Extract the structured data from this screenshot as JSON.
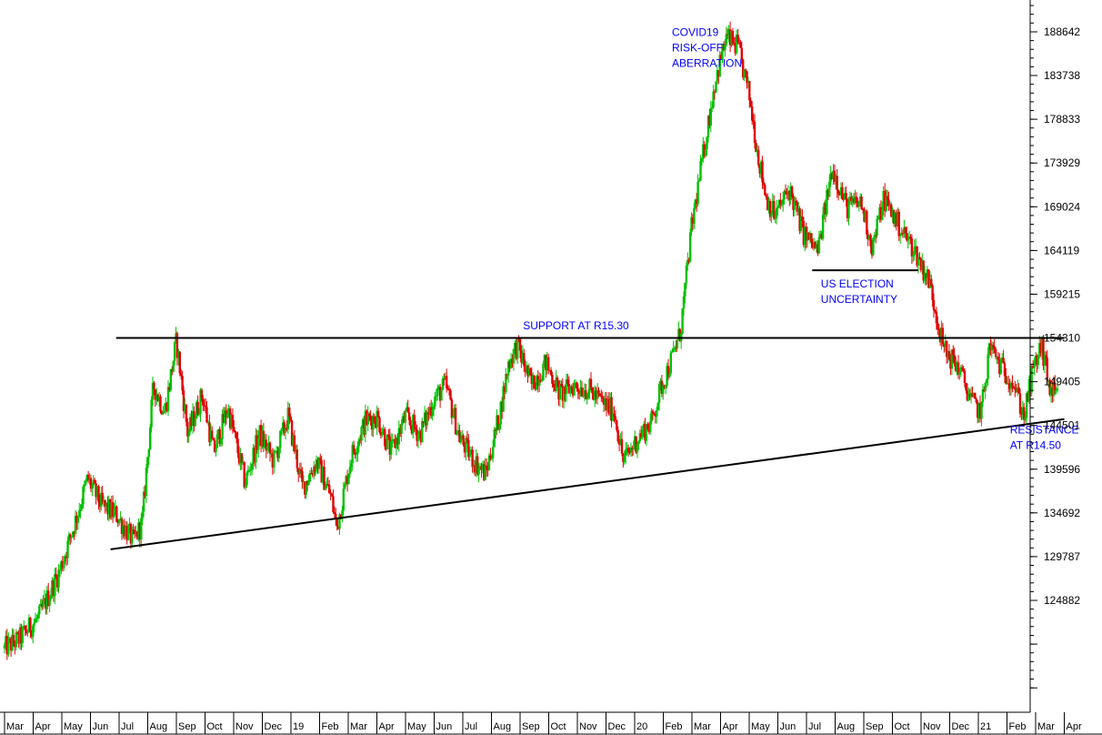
{
  "chart_data": {
    "type": "candlestick",
    "title": "",
    "xlabel": "",
    "ylabel": "",
    "ylim": [
      112000,
      192000
    ],
    "y_ticks": [
      124882,
      129787,
      134692,
      139596,
      144501,
      149405,
      154310,
      159215,
      164119,
      169024,
      173929,
      178833,
      183738,
      188642
    ],
    "y_tick_labels": [
      "124882",
      "129787",
      "134692",
      "139596",
      "144501",
      "149405",
      "154310",
      "159215",
      "164119",
      "169024",
      "173929",
      "178833",
      "183738",
      "188642"
    ],
    "x_labels": [
      "Mar",
      "Apr",
      "May",
      "Jun",
      "Jul",
      "Aug",
      "Sep",
      "Oct",
      "Nov",
      "Dec",
      "19",
      "Feb",
      "Mar",
      "Apr",
      "May",
      "Jun",
      "Jul",
      "Aug",
      "Sep",
      "Oct",
      "Nov",
      "Dec",
      "20",
      "Feb",
      "Mar",
      "Apr",
      "May",
      "Jun",
      "Jul",
      "Aug",
      "Sep",
      "Oct",
      "Nov",
      "Dec",
      "21",
      "Feb",
      "Mar",
      "Apr"
    ],
    "up_color": "#00c000",
    "down_color": "#e00000",
    "line_color": "#000000",
    "annotation_color": "#0000ff",
    "series": [
      {
        "name": "",
        "price_path": [
          [
            0,
            119500
          ],
          [
            0.5,
            120500
          ],
          [
            1.2,
            123000
          ],
          [
            1.9,
            128000
          ],
          [
            2.4,
            133000
          ],
          [
            2.9,
            138500
          ],
          [
            3.4,
            135500
          ],
          [
            3.9,
            134500
          ],
          [
            4.5,
            131500
          ],
          [
            4.8,
            133500
          ],
          [
            5.2,
            149000
          ],
          [
            5.6,
            146000
          ],
          [
            6.0,
            154000
          ],
          [
            6.4,
            143500
          ],
          [
            6.9,
            148000
          ],
          [
            7.3,
            141500
          ],
          [
            7.8,
            146500
          ],
          [
            8.4,
            138000
          ],
          [
            8.9,
            143500
          ],
          [
            9.4,
            140500
          ],
          [
            9.9,
            145500
          ],
          [
            10.4,
            137500
          ],
          [
            10.9,
            140500
          ],
          [
            11.4,
            136500
          ],
          [
            11.6,
            133000
          ],
          [
            12.1,
            141000
          ],
          [
            12.6,
            145000
          ],
          [
            13.0,
            145500
          ],
          [
            13.5,
            141500
          ],
          [
            14.0,
            145500
          ],
          [
            14.5,
            143500
          ],
          [
            15.0,
            147500
          ],
          [
            15.4,
            149000
          ],
          [
            15.9,
            143000
          ],
          [
            16.4,
            140500
          ],
          [
            16.8,
            139000
          ],
          [
            17.3,
            146000
          ],
          [
            17.6,
            151500
          ],
          [
            17.9,
            153500
          ],
          [
            18.4,
            149000
          ],
          [
            18.9,
            151500
          ],
          [
            19.4,
            148000
          ],
          [
            19.9,
            149000
          ],
          [
            20.4,
            148500
          ],
          [
            20.9,
            147000
          ],
          [
            21.3,
            146000
          ],
          [
            21.6,
            140500
          ],
          [
            22.1,
            143000
          ],
          [
            22.6,
            145000
          ],
          [
            22.9,
            148500
          ],
          [
            23.3,
            152000
          ],
          [
            23.6,
            155000
          ],
          [
            24.0,
            167000
          ],
          [
            24.4,
            175000
          ],
          [
            24.8,
            183000
          ],
          [
            25.2,
            188000
          ],
          [
            25.6,
            187000
          ],
          [
            26.0,
            181500
          ],
          [
            26.3,
            175000
          ],
          [
            26.6,
            170000
          ],
          [
            26.9,
            168000
          ],
          [
            27.4,
            171000
          ],
          [
            27.9,
            166000
          ],
          [
            28.4,
            164000
          ],
          [
            28.9,
            173500
          ],
          [
            29.4,
            169000
          ],
          [
            29.9,
            169500
          ],
          [
            30.3,
            164500
          ],
          [
            30.7,
            170000
          ],
          [
            31.3,
            166500
          ],
          [
            31.8,
            164000
          ],
          [
            32.3,
            160500
          ],
          [
            32.8,
            153000
          ],
          [
            33.3,
            151000
          ],
          [
            33.8,
            147000
          ],
          [
            34.1,
            146000
          ],
          [
            34.4,
            153500
          ],
          [
            34.8,
            151000
          ],
          [
            35.2,
            149500
          ],
          [
            35.6,
            145500
          ],
          [
            35.9,
            150500
          ],
          [
            36.2,
            153500
          ],
          [
            36.5,
            148500
          ],
          [
            36.8,
            147500
          ]
        ]
      }
    ],
    "trendlines": [
      {
        "name": "support-line",
        "points": [
          [
            3.9,
            154310
          ],
          [
            37.0,
            154310
          ]
        ]
      },
      {
        "name": "rising-trendline",
        "points": [
          [
            3.7,
            130600
          ],
          [
            37.0,
            145200
          ]
        ]
      },
      {
        "name": "election-line",
        "points": [
          [
            28.2,
            161900
          ],
          [
            31.9,
            161900
          ]
        ]
      }
    ],
    "annotations": [
      {
        "lines": [
          "COVID19",
          "RISK-OFF",
          "ABERRATION"
        ],
        "x": 23.3,
        "y": 188200
      },
      {
        "lines": [
          "SUPPORT AT R15.30"
        ],
        "x": 18.1,
        "y": 155300
      },
      {
        "lines": [
          "US ELECTION",
          "UNCERTAINTY"
        ],
        "x": 28.5,
        "y": 160000
      },
      {
        "lines": [
          "RESISTANCE",
          "AT R14.50"
        ],
        "x": 35.1,
        "y": 143600
      }
    ]
  }
}
